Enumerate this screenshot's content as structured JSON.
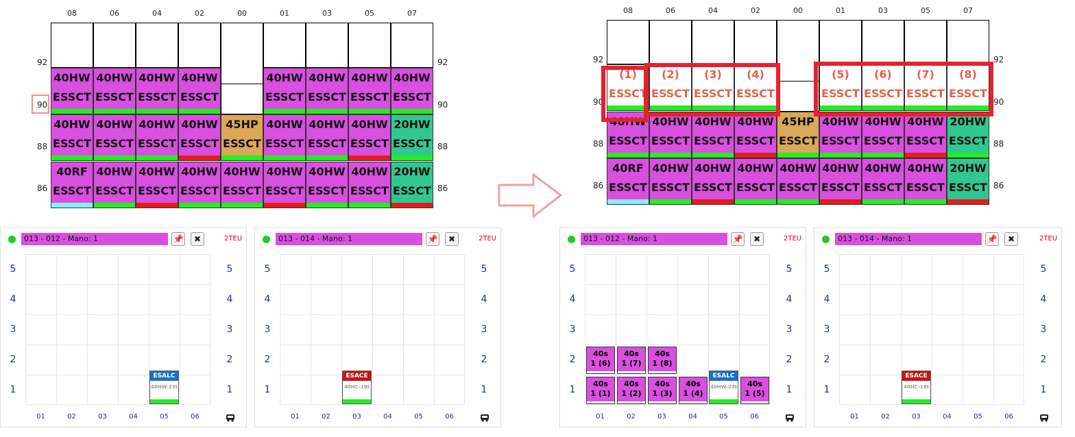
{
  "colors": {
    "purple": "#d94fdf",
    "orange": "#dba758",
    "teal": "#30c890",
    "green_bar": "#22ee22",
    "red_bar": "#e51c1c",
    "cyan_bar": "#88eeff",
    "highlight": "#e8202a"
  },
  "bay_columns": [
    "08",
    "06",
    "04",
    "02",
    "00",
    "01",
    "03",
    "05",
    "07"
  ],
  "row_labels": [
    "92",
    "90",
    "88",
    "86"
  ],
  "before_plan": {
    "row90": [
      {
        "l1": "40HW",
        "l2": "ESSCT",
        "color": "purple",
        "bar": "green_bar"
      },
      {
        "l1": "40HW",
        "l2": "ESSCT",
        "color": "purple",
        "bar": "green_bar"
      },
      {
        "l1": "40HW",
        "l2": "ESSCT",
        "color": "purple",
        "bar": "green_bar"
      },
      {
        "l1": "40HW",
        "l2": "ESSCT",
        "color": "purple",
        "bar": "green_bar"
      },
      null,
      {
        "l1": "40HW",
        "l2": "ESSCT",
        "color": "purple",
        "bar": "green_bar"
      },
      {
        "l1": "40HW",
        "l2": "ESSCT",
        "color": "purple",
        "bar": "green_bar"
      },
      {
        "l1": "40HW",
        "l2": "ESSCT",
        "color": "purple",
        "bar": "green_bar"
      },
      {
        "l1": "40HW",
        "l2": "ESSCT",
        "color": "purple",
        "bar": "green_bar"
      }
    ],
    "row88": [
      {
        "l1": "40HW",
        "l2": "ESSCT",
        "color": "purple",
        "bar": "green_bar"
      },
      {
        "l1": "40HW",
        "l2": "ESSCT",
        "color": "purple",
        "bar": "green_bar"
      },
      {
        "l1": "40HW",
        "l2": "ESSCT",
        "color": "purple",
        "bar": "green_bar"
      },
      {
        "l1": "40HW",
        "l2": "ESSCT",
        "color": "purple",
        "bar": "red_bar"
      },
      {
        "l1": "45HP",
        "l2": "ESSCT",
        "color": "orange",
        "bar": "green_bar"
      },
      {
        "l1": "40HW",
        "l2": "ESSCT",
        "color": "purple",
        "bar": "green_bar"
      },
      {
        "l1": "40HW",
        "l2": "ESSCT",
        "color": "purple",
        "bar": "green_bar"
      },
      {
        "l1": "40HW",
        "l2": "ESSCT",
        "color": "purple",
        "bar": "red_bar"
      },
      {
        "l1": "20HW",
        "l2": "ESSCT",
        "color": "teal",
        "bar": "green_bar"
      }
    ],
    "row86": [
      {
        "l1": "40RF",
        "l2": "ESSCT",
        "color": "purple",
        "bar": "cyan_bar"
      },
      {
        "l1": "40HW",
        "l2": "ESSCT",
        "color": "purple",
        "bar": "green_bar"
      },
      {
        "l1": "40HW",
        "l2": "ESSCT",
        "color": "purple",
        "bar": "red_bar"
      },
      {
        "l1": "40HW",
        "l2": "ESSCT",
        "color": "purple",
        "bar": "green_bar"
      },
      {
        "l1": "40HW",
        "l2": "ESSCT",
        "color": "purple",
        "bar": "green_bar"
      },
      {
        "l1": "40HW",
        "l2": "ESSCT",
        "color": "purple",
        "bar": "red_bar"
      },
      {
        "l1": "40HW",
        "l2": "ESSCT",
        "color": "purple",
        "bar": "green_bar"
      },
      {
        "l1": "40HW",
        "l2": "ESSCT",
        "color": "purple",
        "bar": "green_bar"
      },
      {
        "l1": "20HW",
        "l2": "ESSCT",
        "color": "teal",
        "bar": "red_bar"
      }
    ]
  },
  "after_top_row": [
    {
      "l1": "(1)",
      "l2": "ESSCT"
    },
    {
      "l1": "(2)",
      "l2": "ESSCT"
    },
    {
      "l1": "(3)",
      "l2": "ESSCT"
    },
    {
      "l1": "(4)",
      "l2": "ESSCT"
    },
    null,
    {
      "l1": "(5)",
      "l2": "ESSCT"
    },
    {
      "l1": "(6)",
      "l2": "ESSCT"
    },
    {
      "l1": "(7)",
      "l2": "ESSCT"
    },
    {
      "l1": "(8)",
      "l2": "ESSCT"
    }
  ],
  "panels": [
    {
      "title": "013 - 012 - Mano: 1",
      "teu": "2TEU",
      "tag": {
        "header": "ESALC",
        "color": "#1a72c0",
        "sub": "40HW-23t"
      }
    },
    {
      "title": "013 - 014 - Mano: 1",
      "teu": "2TEU",
      "tag": {
        "header": "ESACE",
        "color": "#c01818",
        "sub": "40HC-18t"
      }
    },
    {
      "title": "013 - 012 - Mano: 1",
      "teu": "2TEU",
      "tag": {
        "header": "ESALC",
        "color": "#1a72c0",
        "sub": "40HW-23t"
      }
    },
    {
      "title": "013 - 014 - Mano: 1",
      "teu": "2TEU",
      "tag": {
        "header": "ESACE",
        "color": "#c01818",
        "sub": "40HC-18t"
      }
    }
  ],
  "tiers": [
    "5",
    "4",
    "3",
    "2",
    "1"
  ],
  "panel_bays": [
    "01",
    "02",
    "03",
    "04",
    "05",
    "06"
  ],
  "plan_chips": {
    "row1": [
      "40s\n1 (1)",
      "40s\n1 (2)",
      "40s\n1 (3)",
      "40s\n1 (4)",
      null,
      "40s\n1 (5)"
    ],
    "row2": [
      "40s\n1 (6)",
      "40s\n1 (7)",
      "40s\n1 (8)"
    ]
  },
  "icons": {
    "pin": "pin-icon",
    "unpin": "unpin-icon",
    "truck": "truck-icon",
    "arrow": "right-arrow-icon",
    "status": "status-dot-icon"
  }
}
